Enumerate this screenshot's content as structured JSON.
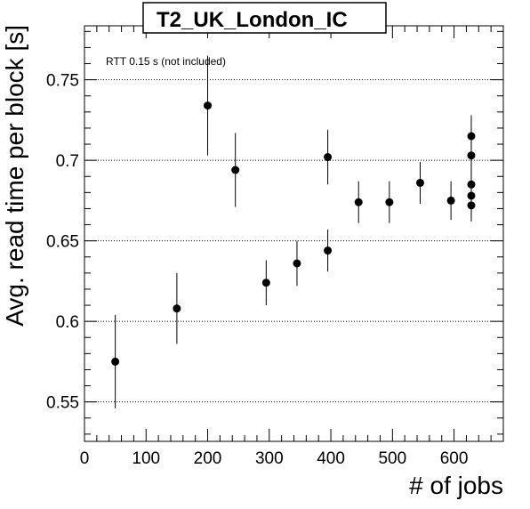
{
  "chart_data": {
    "type": "scatter",
    "title": "T2_UK_London_IC",
    "xlabel": "# of jobs",
    "ylabel": "Avg. read time per block [s]",
    "annotation": "RTT 0.15 s (not included)",
    "xlim": [
      0,
      680
    ],
    "ylim": [
      0.5255,
      0.7835
    ],
    "xticks": [
      0,
      100,
      200,
      300,
      400,
      500,
      600
    ],
    "xtick_labels": [
      "0",
      "100",
      "200",
      "300",
      "400",
      "500",
      "600"
    ],
    "yticks": [
      0.55,
      0.6,
      0.65,
      0.7,
      0.75
    ],
    "ytick_labels": [
      "0.55",
      "0.6",
      "0.65",
      "0.7",
      "0.75"
    ],
    "grid": "horizontal dotted at major y ticks",
    "marker_color": "#000000",
    "points": [
      {
        "x": 50,
        "y": 0.575,
        "err": 0.029
      },
      {
        "x": 150,
        "y": 0.608,
        "err": 0.022
      },
      {
        "x": 200,
        "y": 0.734,
        "err": 0.031
      },
      {
        "x": 245,
        "y": 0.694,
        "err": 0.023
      },
      {
        "x": 295,
        "y": 0.624,
        "err": 0.014
      },
      {
        "x": 345,
        "y": 0.636,
        "err": 0.014
      },
      {
        "x": 395,
        "y": 0.644,
        "err": 0.013
      },
      {
        "x": 395,
        "y": 0.702,
        "err": 0.017
      },
      {
        "x": 445,
        "y": 0.674,
        "err": 0.013
      },
      {
        "x": 495,
        "y": 0.674,
        "err": 0.013
      },
      {
        "x": 545,
        "y": 0.686,
        "err": 0.013
      },
      {
        "x": 595,
        "y": 0.675,
        "err": 0.012
      },
      {
        "x": 628,
        "y": 0.715,
        "err": 0.013
      },
      {
        "x": 628,
        "y": 0.703,
        "err": 0.013
      },
      {
        "x": 628,
        "y": 0.685,
        "err": 0.013
      },
      {
        "x": 628,
        "y": 0.678,
        "err": 0.013
      },
      {
        "x": 628,
        "y": 0.672,
        "err": 0.01
      }
    ]
  }
}
